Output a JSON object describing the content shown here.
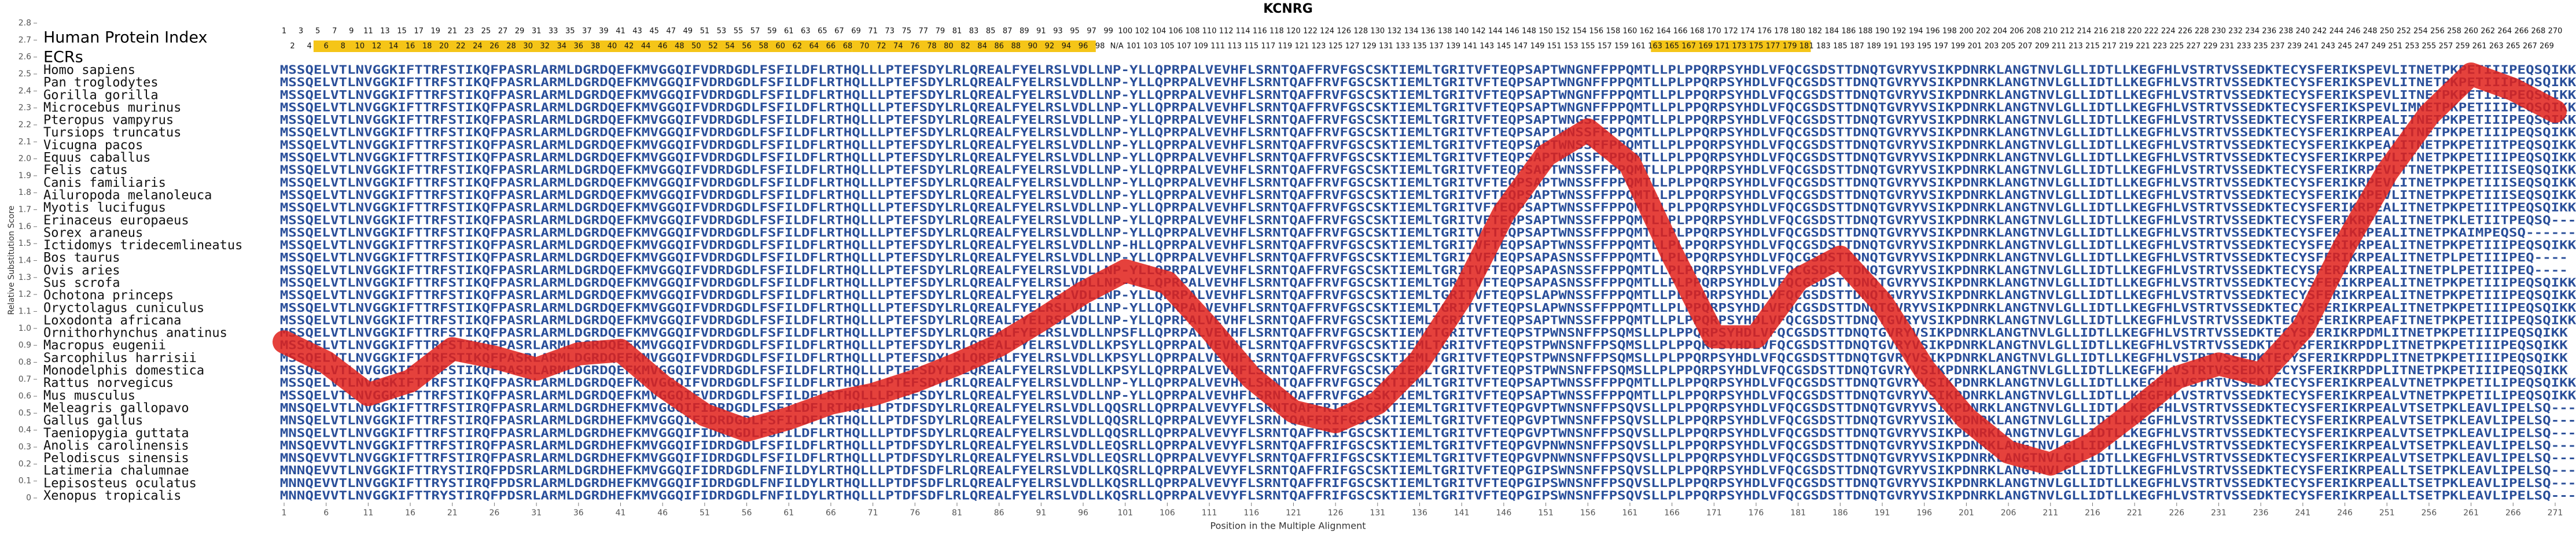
{
  "chart_data": {
    "type": "line",
    "title": "KCNRG",
    "xlabel": "Position in the Multiple Alignment",
    "ylabel": "Relative Substitution Score",
    "index_label": "Human Protein Index",
    "ecr_label": "ECRs",
    "xlim": [
      1,
      271
    ],
    "ylim": [
      0,
      2.8
    ],
    "yticks": [
      0,
      0.1,
      0.2,
      0.3,
      0.4,
      0.5,
      0.6,
      0.7,
      0.8,
      0.9,
      {
        "value": 1,
        "label": "1.0"
      },
      1.1,
      1.2,
      1.3,
      1.4,
      1.5,
      1.6,
      1.7,
      1.8,
      1.9,
      {
        "value": 2,
        "label": "2.0"
      },
      2.1,
      2.2,
      2.3,
      2.4,
      2.5,
      2.6,
      2.7,
      2.8
    ],
    "xticks": [
      1,
      6,
      11,
      16,
      21,
      26,
      31,
      36,
      41,
      46,
      51,
      56,
      61,
      66,
      71,
      76,
      81,
      86,
      91,
      96,
      101,
      106,
      111,
      116,
      121,
      126,
      131,
      136,
      141,
      146,
      151,
      156,
      161,
      166,
      171,
      176,
      181,
      186,
      191,
      196,
      201,
      206,
      211,
      216,
      221,
      226,
      231,
      236,
      241,
      246,
      251,
      256,
      261,
      266,
      271
    ],
    "color": "#e0201a",
    "x": [
      1,
      6,
      11,
      16,
      21,
      26,
      31,
      36,
      41,
      46,
      51,
      56,
      61,
      66,
      71,
      76,
      81,
      86,
      91,
      96,
      101,
      106,
      111,
      116,
      121,
      126,
      131,
      136,
      141,
      146,
      151,
      156,
      161,
      166,
      171,
      176,
      181,
      186,
      191,
      196,
      201,
      206,
      211,
      216,
      221,
      226,
      231,
      236,
      241,
      246,
      251,
      256,
      261,
      266,
      271
    ],
    "values": [
      0.92,
      0.8,
      0.61,
      0.69,
      0.88,
      0.83,
      0.76,
      0.85,
      0.87,
      0.66,
      0.49,
      0.4,
      0.47,
      0.56,
      0.61,
      0.69,
      0.79,
      0.9,
      1.05,
      1.21,
      1.34,
      1.27,
      1.0,
      0.71,
      0.51,
      0.45,
      0.56,
      0.81,
      1.19,
      1.68,
      2.02,
      2.17,
      1.97,
      1.44,
      0.95,
      0.95,
      1.29,
      1.42,
      1.15,
      0.76,
      0.47,
      0.27,
      0.2,
      0.32,
      0.51,
      0.71,
      0.79,
      0.73,
      1.0,
      1.49,
      1.92,
      2.26,
      2.5,
      2.41,
      2.28
    ],
    "ecrs": [
      [
        5,
        19
      ],
      [
        20,
        36
      ],
      [
        37,
        68
      ],
      [
        69,
        97
      ],
      [
        164,
        182
      ]
    ],
    "human_index": [
      1,
      2,
      3,
      4,
      5,
      6,
      7,
      8,
      9,
      10,
      11,
      12,
      13,
      14,
      15,
      16,
      17,
      18,
      19,
      20,
      21,
      22,
      23,
      24,
      25,
      26,
      27,
      28,
      29,
      30,
      31,
      32,
      33,
      34,
      35,
      36,
      37,
      38,
      39,
      40,
      41,
      42,
      43,
      44,
      45,
      46,
      47,
      48,
      49,
      50,
      51,
      52,
      53,
      54,
      55,
      56,
      57,
      58,
      59,
      60,
      61,
      62,
      63,
      64,
      65,
      66,
      67,
      68,
      69,
      70,
      71,
      72,
      73,
      74,
      75,
      76,
      77,
      78,
      79,
      80,
      81,
      82,
      83,
      84,
      85,
      86,
      87,
      88,
      89,
      90,
      91,
      92,
      93,
      94,
      95,
      96,
      97,
      98,
      99,
      "N/A",
      100,
      101,
      102,
      103,
      104,
      105,
      106,
      107,
      108,
      109,
      110,
      111,
      112,
      113,
      114,
      115,
      116,
      117,
      118,
      119,
      120,
      121,
      122,
      123,
      124,
      125,
      126,
      127,
      128,
      129,
      130,
      131,
      132,
      133,
      134,
      135,
      136,
      137,
      138,
      139,
      140,
      141,
      142,
      143,
      144,
      145,
      146,
      147,
      148,
      149,
      150,
      151,
      152,
      153,
      154,
      155,
      156,
      157,
      158,
      159,
      160,
      161,
      162,
      163,
      164,
      165,
      166,
      167,
      168,
      169,
      170,
      171,
      172,
      173,
      174,
      175,
      176,
      177,
      178,
      179,
      180,
      181,
      182,
      183,
      184,
      185,
      186,
      187,
      188,
      189,
      190,
      191,
      192,
      193,
      194,
      195,
      196,
      197,
      198,
      199,
      200,
      201,
      202,
      203,
      204,
      205,
      206,
      207,
      208,
      209,
      210,
      211,
      212,
      213,
      214,
      215,
      216,
      217,
      218,
      219,
      220,
      221,
      222,
      223,
      224,
      225,
      226,
      227,
      228,
      229,
      230,
      231,
      232,
      233,
      234,
      235,
      236,
      237,
      238,
      239,
      240,
      241,
      242,
      243,
      244,
      245,
      246,
      247,
      248,
      249,
      250,
      251,
      252,
      253,
      254,
      255,
      256,
      257,
      258,
      259,
      260,
      261,
      262,
      263,
      264,
      265,
      266,
      267,
      268,
      269,
      270
    ],
    "species": [
      "Homo sapiens",
      "Pan troglodytes",
      "Gorilla gorilla",
      "Microcebus murinus",
      "Pteropus vampyrus",
      "Tursiops truncatus",
      "Vicugna pacos",
      "Equus caballus",
      "Felis catus",
      "Canis familiaris",
      "Ailuropoda melanoleuca",
      "Myotis lucifugus",
      "Erinaceus europaeus",
      "Sorex araneus",
      "Ictidomys tridecemlineatus",
      "Bos taurus",
      "Ovis aries",
      "Sus scrofa",
      "Ochotona princeps",
      "Oryctolagus cuniculus",
      "Loxodonta africana",
      "Ornithorhynchus anatinus",
      "Macropus eugenii",
      "Sarcophilus harrisii",
      "Monodelphis domestica",
      "Rattus norvegicus",
      "Mus musculus",
      "Meleagris gallopavo",
      "Gallus gallus",
      "Taeniopygia guttata",
      "Anolis carolinensis",
      "Pelodiscus sinensis",
      "Latimeria chalumnae",
      "Lepisosteus oculatus",
      "Xenopus tropicalis"
    ],
    "sequences": [
      "MSSQELVTLNVGGKIFTTRFSTIKQFPASRLARMLDGRDQEFKMVGGQIFVDRDGDLFSFILDFLRTHQLLLPTEFSDYLRLQREALFYELRSLVDLLNP-YLLQPRPALVEVHFLSRNTQAFFRVFGSCSKTIEMLTGRITVFTEQPSAPTWNGNFFPPQMTLLPLPPQRPSYHDLVFQCGSDSTTDNQTGVRYVSIKPDNRKLANGTNVLGLLIDTLLKEGFHLVSTRTVSSEDKTECYSFERIKSPEVLITNETPKPETIIIPEQSQIKK",
      "MSSQELVTLNVGGKIFTTRFSTIKQFPASRLARMLDGRDQEFKMVGGQIFVDRDGDLFSFILDFLRTHQLLLPTEFSDYLRLQREALFYELRSLVDLLNP-YLLQPRPALVEVHFLSRNTQAFFRVFGSCSKTIEMLTGRITVFTEQPSAPTWNGNFFPPQMTLLPLPPQRPSYHDLVFQCGSDSTTDNQTGVRYVSIKPDNRKLANGTNVLGLLIDTLLKEGFHLVSTRTVSSEDKTECYSFERIKSPEVLITNETPKPETIIIPEQSQIKK",
      "MSSQELVTLNVGGKIFTTRFSTIKQFPASRLARMLDGRDQEFKMVGGQIFVDRDGDLFSFILDFLRTHQLLLPTEFSDYLRLQREALFYELRSLVDLLNP-YLLQPRPALVEVHFLSRNTQAFFRVFGSCSKTIEMLTGRITVFTEQPSAPTWNGNFFPPQMTLLPLPPQRPSYHDLVFQCGSDSTTDNQTGVRYVSIKPDNRKLANGTNVLGLLIDTLLKEGFHLVSTRTVSSEDKTECYSFERIKSPEVLITNETPKPETIIIPEQSQIKK",
      "MSSQELVTLNVGGKIFTTRFSTIKQFPASRLARMLDGRDQEFKMVGGQIFVDRDGDLFSFILDFLRTHQLLLPTEFSDYLRLQREALFYELRSLVDLLNP-YLLQPRPALVEVHFLSRNTQAFFRVFGSCSKTIEMLTGRITVFTEQPSAPTWNGNFFPPQMTLLPLPPQRPSYHDLVFQCGSDSTTDNQTGVRYVSIKPDNRKLANGTNVLGLLIDTLLKEGFHLVSTRTVSSEDKTECYSFERIKSPEVLIMNETPKPETIIIPEQSQIKK",
      "MSSQELVTLNVGGKIFTTRFSTIKQFPASRLARMLDGRDQEFKMVGGQIFVDRDGDLFSFILDFLRTHQLLLPTEFSDYLRLQREALFYELRSLVDLLNP-YLLQPRPALVEVHFLSRNTQAFFRVFGSCSKTIEMLTGRITVFTEQPSAPTWNGSFFPPQMTLLPLPPQRPSYHDLVFQCGSDSTTDNQTGVRYVSIKPDNRKLANGTNVLGLLIDTLLKEGFHLVSTRTVSSEDKTECYSFERIKRPEALITNETPKPETIIIPEQSQIKK",
      "MSSQELVTLNVGGKIFTTRFSTIKQFPASRLARMLDGRDQEFKMVGGQIFVDRDGDLFSFILDFLRTHQLLLPTEFSDYLRLQREALFYELRSLVDLLNP-YLLQPRPALVEVHFLSRNTQAFFRVFGSCSKTIEMLTGRITVFTEQPSAPTWNSSFFPPQMTLLPLPPQRPSYHDLVFQCGSDSTTDNQTGVRYVSIKPDNRKLANGTNVLGLLIDTLLKEGFHLVSTRTVSSEDKTECYSFERIKRPEALITNETPKPETIIIPEQSQIKK",
      "MSSQELVTLNVGGKIFTTRFSTIKQFPASRLARMLDGRDQEFKMVGGQIFVDRDGDLFSFILDFLRTHQLLLPTEFSDYLRLQREALFYELRSLVDLLNP-YLLQPRPALVEVHFLSRNTQAFFRVFGSCSKTIEMLTGRITVFTEQPSAPTWNSSFFPPQMTLLPLPPQRPSYHDLVFQCGSDSTTDNQTGVRYVSIKPDNRKLANGTNVLGLLIDTLLKEGFHLVSTRTVSSEDKTECYSFERIKKPEALITNETPKPETIITPEQSQIKK",
      "MSSQELVTLNVGGKIFTTRFSTIKQFPASRLARMLDGRDQEFKMVGGQIFVDRDGDLFSFILDFLRTHQLLLPTEFSDYLRLQREALFYELRSLVDLLNP-YLLQPRPALVEVHFLSRNTQAFFRVFGSCSKTIEMLTGRITVFTEQPSAPTWNSSFFPPQMTLLPLPPQRPSYHDLVFQCGSDSTTDNQTGVRYVSIKPDNRKLANGTNVLGLLIDTLLKEGFHLVSTRTVSSEDKTECYSFERIKRPEVLITNETPKPETIIIPEQSQIKK",
      "MSSQELVTLNVGGKIFTTRFSTIKQFPASRLARMLDGRDQEFKMVGGQIFVDRDGDLFSFILDFLRTHQLLLPTEFSDYLRLQREALFYELRSLVDLLNP-YLLQPRPALVEVHFLSRNTQAFFRVFGSCSKTIEMLTGRITVFTEQPSAPTWNSSFFPPQMTLLPLPPQRPSYHDLVFQCGSDSTTDNQTGVRYVSIKPDNRKLANGTNVLGLLIDTLLKEGFHLVSTRTVSSEDKTECYSFERIKRPEVLTTNETPKPETIIISEQSQIKK",
      "MSSQELVTLNVGGKIFTTRFSTIKQFPASRLARMLDGRDQEFKMVGGQIFVDRDGDLFSFILDFLRTHQLLLPTEFSDYLRLQREALFYELRSLVDLLNP-YLLQPRPALVEVHFLSRNTQAFFRVFGSCSKTIEMLTGRITVFTEQPSAPTWNSSFFPPQMTLLPLPPQRPSYHDLVFQCGSDSTTDNQTGVRYVSIKPDNRKLANGTNVLGLLIDTLLKEGFHLVSTRTVSSEDKTECYSFERIKRPEVLITNETPKPETIIISEQSQIKK",
      "MSSQELVTLNVGGKIFTTRFSTIKQFPASRLARMLDGRDQEFKMVGGQIFVDRDGDLFSFILDFLRTHQLLLPTEFSDYLRLQREALFYELRSLVDLLNP-YLLQPRPALVEVHFLSRNTQAFFRVFGSCSKTIEMLTGRITVFTEQPSAPTWNSSFFPPQMTLLPLPPQRPSYHDLVFQCGSDSTTDNQTGVRYVSIKPDNRKLANGTNVLGLLIDTLLKEGFHLVSTRTVSSEDKTECYSFERIKRPEVLITNETPKPETIIISEQSQIKK",
      "MSSQELVTLNVGGKIFTTRFSTIKQFPASRLARMLDGRDQEFKMVGGQIFVDRDGDLFSFILDFLRTHQLLLPTEFSDYLRLQREALFYELRSLVDLLNP-YLLQPRPALVEVHFLSRNTQAFFRVFGSCSKTIEMLTGRITVFTEQPSAPTWNSSFFPPQMTLLPLPPQRPSYHDLVFQCGSDSTTDNQTGVRYVSIKPDNRKLANGTNVLGLLIDTLLKEGFHLVSTRTVSSEDKTECYSFERIKRPEALITNETPKPETIITPEQSQIKK",
      "MSSQELVTLNVGGKIFTTRFSTIKQFPASRLARMLDGRDQEFKMVGGQIFVDRDGDLFSFILDFLRTHQLLLPTEFSDYLRLQREALFYELRSLVDLLNP-YLLQPRPALVEVHFLSRNTQAFFRVFGSCSKTIEMLTGRITVFTEQPSAPTWNSSFFPPQMTLLPLPPQRPSYHDLVFQCGSDSTTDNQTGVRYVSIKPDNRKLANGTNVLGLLIDTLLKEGFHLVSTRTVSSEDKTECYSFERIKRPEALITNETPKLETIITPEQSQ---",
      "MSSQELVTLNVGGKIFTTRFSTIKQFPASRLARMLDGRDQEFKMVGGQIFVDRDGDLFSFILDFLRTHQLLLPTEFSDYLRLQREALFYELRSLVDLLNP-YLLQPRPALVEVHFLSRNTQAFFRVFGSCSKTIEMLTGRITVFTEQPSAPTWNSSFFPPQMTLLPLPPQRPSYHDLVFQCGSDSTTDNQTGVRYVSIKPDNRKLANGTNVLGLLIDTLLKEGFHLVSTRTVSSEDKTECYSFERIKRPEALITNETPKAIMPEQSQ-------",
      "MSSQELVTLNVGGKIFTTRFSTIKQFPASRLARMLDGRDQEFKMVGGQIFVDRDGDLFSFILDFLRTHQLLLPTEFSDYLRLQREALFYELRSLVDLLNP-HLLQPRPALVEVHFLSRNTQAFFRVFGSCSKTIEMLTGRITVFTEQPSAPTWNSSFFPPQMTLLPLPPQRPSYHDLVFQCGSDSTTDNQTGVRYVSIKPDNRKLANGTNVLGLLIDTLLKEGFHLVSTRTVSSEDKTECYSFERIKRPEALITNETPKPETIIIPEQSQIKK",
      "MSSQELVTLNVGGKIFTTRFSTIKQFPASRLARMLDGRDQEFKMVGGQIFVDRDGDLFSFILDFLRTHQLLLPTEFSDYLRLQREALFYELRSLVDLLNP-YLLQPRPALVEVHFLSRNTQAFFRVFGSCSKTIEMLTGRITVFTEQPSAPASNSSFFPPQMTLLPLPPQRPSYHDLVFQCGSDSTTDNQTGVRYVSIKPDNRKLANGTNVLGLLIDTLLKEGFHLVSTRTVSSEDKTECYSFERIKRPEALITNETPLPETIIIPEQ----",
      "MSSQELVTLNVGGKIFTTRFSTIKQFPASRLARMLDGRDQEFKMVGGQIFVDRDGDLFSFILDFLRTHQLLLPTEFSDYLRLQREALFYELRSLVDLLNP-YLLQPRPALVEVHFLSRNTQAFFRVFGSCSKTIEMLTGRITVFTEQPSAPASNSSFFPPQMTLLPLPPQRPSYHDLVFQCGSDSTTDNQTGVRYVSIKPDNRKLANGTNVLGLLIDTLLKEGFHLVSTRTVSSEDKTECYSFERIKRPEALITNETPLPETIIIPEQ----",
      "MSSQELVTLNVGGKIFTTRFSTIKQFPASRLARMLDGRDQEFKMVGGQIFVDRDGDLFSFILDFLRTHQLLLPTEFSDYLRLQREALFYELRSLVDLLNP-YLLQPRPALVEVHFLSRNTQAFFRVFGSCSKTIEMLTGRITVFTEQPSAPASNSSFFPPQMTLLPLPPQRPSYHDLVFQCGSDSTTDNQTGVRYVSIKPDNRKLANGTNVLGLLIDTLLKEGFHLVSTRTVSSEDKTECYSFERIKRPEALITNETPKPETIIIPEQSQIKK",
      "MSSQELVTLNVGGKIFTTRFSTIKQFPASRLARMLDGRDQEFKMVGGQIFVDRDGDLFSFILDFLRTHQLLLPTEFSDYLRLQREALFYELRSLVDLLNP-YLLQPRPALVEVHFLSRNTQAFFRVFGSCSKTIEMLTGRITVFTEQPSLAPWNSSFFPPQMTLLPLPPQRPSYHDLVFQCGSDSTTDNQTGVRYVSIKPDNRKLANGTNVLGLLIDTLLKEGFHLVSTRTVSSEDKTECYSFERIKRPEALITNETPKPETIIIPEQSQIKK",
      "MSSQELVTLNVGGKIFTTRFSTIKQFPASRLARMLDGRDQEFKMVGGQIFVDRDGDLFSFILDFLRTHQLLLPTEFSDYLRLQREALFYELRSLVDLLNP-YLLQPRPALVEVHFLSRNTQAFFRVFGSCSKTIEMLTGRITVFTEQPSLAPWNSSFFPPQMTLLPLPPQRPSYHDLVFQCGSDSTTDNQTGVRYVSIKPDNRKLANGTNVLGLLIDTLLKEGFHLVSTRTVSSEDKTECYSFERIKRPEALITNETPKPETIIIPEQSQIKK",
      "MSSQELVTLNVGGKIFTTRFSTIKQFPASRLARMLDGRDQEFKMVGGQIFVDRDGDLFSFILDFLRTHQLLLPTEFSDYLRLQREALFYELRSLVDLLNP-YLLQPRPALVEVHFLSRNTQAFFRVFGSCSKTIEMLTGRITVFTEQPSAPTWNSSFFPPQMTLLPLPPQRPSYHDLVFQCGSDSTTDNQTGVRYVSIKPDNRKLANGTNVLGLLIDTLLKEGFHLVSTRTVSSEDKTECYSFERIKRPEAFITNETPKPETIIIPEQSQIKK",
      "MSSQELVTLNVGGKIFTTRFSTIKQFPASRLARMLDGRDQEFKMVGGQIFVDRDGDLFSFILDFLRTHQLLLPTEFSDYLRLQREALFYELRSLVDLLNPSFLLQPRPALVEVHFLSRNTQAFFRVFGSCSKTIEMLTGRITVFTEQPSTPWNSNFFPSQMSLLPLPPQRPSYHDLVFQCGSDSTTDNQTGVRYVSIKPDNRKLANGTNVLGLLIDTLLKEGFHLVSTRTVSSEDKTECYSFERIKRPDMLITNETPKPETIIIPEQSQIKK",
      "MSSQELVTLNVGGKIFTTRFSTIKQFPASRLARMLDGRDQEFKMVGGQIFVDRDGDLFSFILDFLRTHQLLLPTEFSDYLRLQREALFYELRSLVDLLKPSYLLQPRPALVEVHFLSRNTQAFFRVFGSCSKTIEMLTGRITVFTEQPSTPWNSNFFPSQMSLLPLPPQRPSYHDLVFQCGSDSTTDNQTGVRYVSIKPDNRKLANGTNVLGLLIDTLLKEGFHLVSTRTVSSEDKTECYSFERIKRPDPLITNETPKPETIIIPEQSQIKK",
      "MSSQELVTLNVGGKIFTTRFSTIKQFPASRLARMLDGRDQEFKMVGGQIFVDRDGDLFSFILDFLRTHQLLLPTEFSDYLRLQREALFYELRSLVDLLKPSYLLQPRPALVEVHFLSRNTQAFFRVFGSCSKTIEMLTGRITVFTEQPSTPWNSNFFPSQMSLLPLPPQRPSYHDLVFQCGSDSTTDNQTGVRYVSIKPDNRKLANGTNVLGLLIDTLLKEGFHLVSTRTVSSEDKTECYSFERIKRPDPLITNETPKPETIIIPEQSQIKK",
      "MSSQELVTLNVGGKIFTTRFSTIKQFPASRLARMLDGRDQEFKMVGGQIFVDRDGDLFSFILDFLRTHQLLLPTEFSDYLRLQREALFYELRSLVDLLKPSYLLQPRPALVEVHFLSRNTQAFFRVFGSCSKTIEMLTGRITVFTEQPSTPWNSNFFPSQMSLLPLPPQRPSYHDLVFQCGSDSTTDNQTGVRYVSIKPDNRKLANGTNVLGLLIDTLLKEGFHLVSTRTVSSEDKTECYSFERIKRPDPLITNETPKPETIIIPEQSQIKK",
      "MSSQELVTLNVGGKIFTTRFSTIKQFPASRLARMLDGRDQEFKMVGGQIFVDRDGDLFSFILDFLRTHQLLLPTEFSDYLRLQREALFYELRSLVDLLNP-YLLQPRPALVEVHFLSRNTQAFFRVFGSCSKTIEMLTGRITVFTEQPSAPTWNSSFFPPQMTLLPLPPQRPSYHDLVFQCGSDSTTDNQTGVRYVSIKPDNRKLANGTNVLGLLIDTLLKEGFHLVSTRTVSSEDKTECYSFERIKRPEALVTNETPKPETILIPEQSQIKK",
      "MSSQELVTLNVGGKIFTTRFSTIKQFPASRLARMLDGRDQEFKMVGGQIFVDRDGDLFSFILDFLRTHQLLLPTEFSDYLRLQREALFYELRSLVDLLNP-YLLQPRPALVEVHFLSRNTQAFFRVFGSCSKTIEMLTGRITVFTEQPSAPTWNSSFFPPQMTLLPLPPQRPSYHDLVFQCGSDSTTDNQTGVRYVSIKPDNRKLANGTNVLGLLIDTLLKEGFHLVSTRTVSSEDKTECYSFERIKRPEALVTNETPKPETILIPEQSQIKK",
      "MNSQELVTLNVGGKIFTTRFSTIRQFPASRLARMLDGRDHEFKMVGGQIFIDRDGDLFSFILDFLRTHQLLLPTDFSDYLRLQREALFYELRSLVDLLQQSRLLQPRPALVEVYFLSRNTQAFFRIFGSCSKTIEMLTGRITVFTEQPGVPTWNSNFFPSQVSLLPLPPQRPSYHDLVFQCGSDSTTDNQTGVRYVSIKPDNRKLANGTNVLGLLIDTLLKEGFHLVSTRTVSSEDKTECYSFERIKRPEALVTSETPKLEAVLIPELSQ---",
      "MNSQELVTLNVGGKIFTTRFSTIRQFPASRLARMLDGRDHEFKMVGGQIFIDRDGDLFSFILDFLRTHQLLLPTDFSDYLRLQREALFYELRSLVDLLQQSRLLQPRPALVEVYFLSRNTQAFFRIFGSCSKTIEMLTGRITVFTEQPGVPTWNSNFFPSQVSLLPLPPQRPSYHDLVFQCGSDSTTDNQTGVRYVSIKPDNRKLANGTNVLGLLIDTLLKEGFHLVSTRTVSSEDKTECYSFERIKRPEALVTSETPKLEAVLIPELSQ---",
      "MNSQELVTLNVGGKIFTTRFSTIRQFPASRLARMLDGRDHEFKMVGGQIFIDRDGDLFSFILDFLRTHQLLLPTDFSDYLRLQREALFYELRSLVDLLQQSRLLQPRPALVEVYFLSRNTQAFFRIFGSCSKTIEMLTGRITVFTEQPGVPTWNSNFFPSQVSLLPLPPQRPSYHDLVFQCGSDSTTDNQTGVRYVSIKPDNRKLANGTNVLGLLIDTLLKEGFHLVSTRTVSSEDKTECYSFERIKRPEALVTSETPKLEAVLIPELSQ---",
      "MNSQEVVTLNVGGKIFTTRFSTIRQFPASRLARMLDGRDHEFKMVGGQIFIDRDGDLFSFILDFLRTHQLLLPTDFSDYLRLQREALFYELRSLVDLLEQSRLLQPRPALVEVYFLSRNTQAFFRIFGSCSKTIEMLTGRITVFTEQPGVPNWNSNFFPSQVSLLPLPPQRPSYHDLVFQCGSDSTTDNQTGVRYVSIKPDNRKLANGTNVLGLLIDTLLKEGFHLVSTRTVSSEDKTECYSFERIKRPEALVTSETPKLEAVLIPELSQ---",
      "MNSQEVVTLNVGGKIFTTRFSTIRQFPASRLARMLDGRDHEFKMVGGQIFIDRDGDLFSFILDFLRTHQLLLPTDFSDYLRLQREALFYELRSLVDLLEQSRLLQPRPALVEVYFLSRNTQAFFRIFGSCSKTIEMLTGRITVFTEQPGVPNWNSNFFPSQVSLLPLPPQRPSYHDLVFQCGSDSTTDNQTGVRYVSIKPDNRKLANGTNVLGLLIDTLLKEGFHLVSTRTVSSEDKTECYSFERIKRPEALVTSETPKLEAVLIPELSQ---",
      "MNNQEVVTLNVGGKIFTTRYSTIRQFPDSRLARMLDGRDHEFKMVGGQIFIDRDGDLFNFILDYLRTHQLLLPTDFSDFLRLQREALFYELRSLVDLLKQSRLLQPRPALVEVYFLSRNTQAFFRIFGSCSKTIEMLTGRITVFTEQPGIPSWNSNFFPSQVSLLPLPPQRPSYHDLVFQCGSDSTTDNQTGVRYVSIKPDNRKLANGTNVLGLLIDTLLKEGFHLVSTRTVSSEDKTECYSFERIKRPEALLTSETPKLEAVLIPELSQ---",
      "MNNQEVVTLNVGGKIFTTRYSTIRQFPDSRLARMLDGRDHEFKMVGGQIFIDRDGDLFNFILDYLRTHQLLLPTDFSDFLRLQREALFYELRSLVDLLKQSRLLQPRPALVEVYFLSRNTQAFFRIFGSCSKTIEMLTGRITVFTEQPGIPSWNSNFFPSQVSLLPLPPQRPSYHDLVFQCGSDSTTDNQTGVRYVSIKPDNRKLANGTNVLGLLIDTLLKEGFHLVSTRTVSSEDKTECYSFERIKRPEALLTSETPKLEAVLIPELSQ---",
      "MNNQEVVTLNVGGKIFTTRYSTIRQFPDSRLARMLDGRDHEFKMVGGQIFIDRDGDLFNFILDYLRTHQLLLPTDFSDFLRLQREALFYELRSLVDLLKQSRLLQPRPALVEVYFLSRNTQAFFRIFGSCSKTIEMLTGRITVFTEQPGIPSWNSNFFPSQVSLLPLPPQRPSYHDLVFQCGSDSTTDNQTGVRYVSIKPDNRKLANGTNVLGLLIDTLLKEGFHLVSTRTVSSEDKTECYSFERIKRPEALLTSETPKLEAVLIPELSQ---"
    ]
  }
}
